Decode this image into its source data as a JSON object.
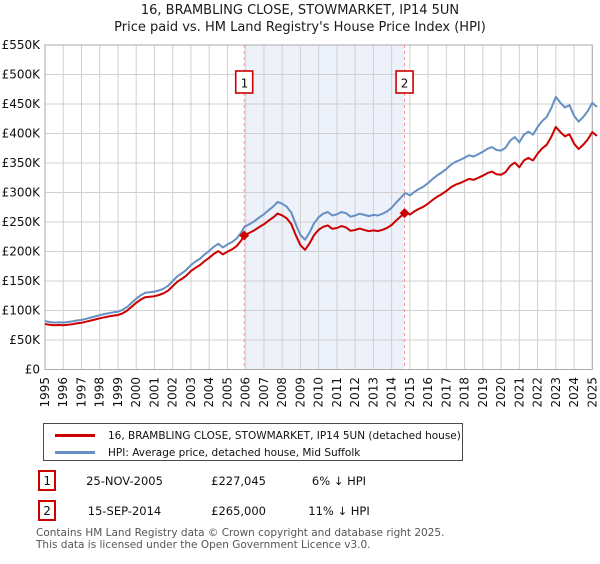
{
  "colors": {
    "accent_red": "#cc0000",
    "hpi_blue": "#6690c4",
    "shade": "#edf1fa",
    "dashed": "#f09898",
    "grid": "#d0d0d0",
    "plot_border": "#aaaaaa",
    "axis_text": "#111111",
    "footer_text": "#555555"
  },
  "chart_data": {
    "type": "line",
    "title": "16, BRAMBLING CLOSE, STOWMARKET, IP14 5UN",
    "subtitle": "Price paid vs. HM Land Registry's House Price Index (HPI)",
    "xlim": [
      1995,
      2025
    ],
    "ylim": [
      0,
      550
    ],
    "grid": true,
    "legend_position": "bottom",
    "x_ticks": [
      1995,
      1996,
      1997,
      1998,
      1999,
      2000,
      2001,
      2002,
      2003,
      2004,
      2005,
      2006,
      2007,
      2008,
      2009,
      2010,
      2011,
      2012,
      2013,
      2014,
      2015,
      2016,
      2017,
      2018,
      2019,
      2020,
      2021,
      2022,
      2023,
      2024,
      2025
    ],
    "y_tick_values": [
      0,
      50,
      100,
      150,
      200,
      250,
      300,
      350,
      400,
      450,
      500,
      550
    ],
    "y_tick_labels": [
      "£0",
      "£50K",
      "£100K",
      "£150K",
      "£200K",
      "£250K",
      "£300K",
      "£350K",
      "£400K",
      "£450K",
      "£500K",
      "£550K"
    ],
    "y_unit": "£K",
    "shaded_region": [
      2005.92,
      2014.71
    ],
    "x": [
      1995,
      1995.25,
      1995.5,
      1995.75,
      1996,
      1996.25,
      1996.5,
      1996.75,
      1997,
      1997.25,
      1997.5,
      1997.75,
      1998,
      1998.25,
      1998.5,
      1998.75,
      1999,
      1999.25,
      1999.5,
      1999.75,
      2000,
      2000.25,
      2000.5,
      2000.75,
      2001,
      2001.25,
      2001.5,
      2001.75,
      2002,
      2002.25,
      2002.5,
      2002.75,
      2003,
      2003.25,
      2003.5,
      2003.75,
      2004,
      2004.25,
      2004.5,
      2004.75,
      2005,
      2005.25,
      2005.5,
      2005.75,
      2005.92,
      2006,
      2006.25,
      2006.5,
      2006.75,
      2007,
      2007.25,
      2007.5,
      2007.75,
      2008,
      2008.25,
      2008.5,
      2008.75,
      2009,
      2009.25,
      2009.5,
      2009.75,
      2010,
      2010.25,
      2010.5,
      2010.75,
      2011,
      2011.25,
      2011.5,
      2011.75,
      2012,
      2012.25,
      2012.5,
      2012.75,
      2013,
      2013.25,
      2013.5,
      2013.75,
      2014,
      2014.25,
      2014.5,
      2014.71,
      2014.75,
      2015,
      2015.25,
      2015.5,
      2015.75,
      2016,
      2016.25,
      2016.5,
      2016.75,
      2017,
      2017.25,
      2017.5,
      2017.75,
      2018,
      2018.25,
      2018.5,
      2018.75,
      2019,
      2019.25,
      2019.5,
      2019.75,
      2020,
      2020.25,
      2020.5,
      2020.75,
      2021,
      2021.25,
      2021.5,
      2021.75,
      2022,
      2022.25,
      2022.5,
      2022.75,
      2023,
      2023.25,
      2023.5,
      2023.75,
      2024,
      2024.25,
      2024.5,
      2024.75,
      2025,
      2025.25
    ],
    "series": [
      {
        "id": "property-price-line",
        "name": "16, BRAMBLING CLOSE, STOWMARKET, IP14 5UN (detached house)",
        "color": "#cc0000",
        "values": [
          77.2,
          75.8,
          74.9,
          75.4,
          74.9,
          75.8,
          76.8,
          78.2,
          79.1,
          81.0,
          82.9,
          84.8,
          86.7,
          88.5,
          90.0,
          91.4,
          92.3,
          95.1,
          99.9,
          106.4,
          113.0,
          118.7,
          122.5,
          123.4,
          124.3,
          126.2,
          129.1,
          133.8,
          141.3,
          148.8,
          153.5,
          159.2,
          166.7,
          172.4,
          177.1,
          183.7,
          189.3,
          195.9,
          200.6,
          195.0,
          199.7,
          203.5,
          209.1,
          218.5,
          227.0,
          228.8,
          232.2,
          236.5,
          241.7,
          246.1,
          252.2,
          257.4,
          264.4,
          261.2,
          256.2,
          246.5,
          227.6,
          210.6,
          202.9,
          213.6,
          228.0,
          236.8,
          241.9,
          244.3,
          238.4,
          239.8,
          243.1,
          240.9,
          235.0,
          236.4,
          238.8,
          236.6,
          234.4,
          235.8,
          234.5,
          236.8,
          240.0,
          245.0,
          252.6,
          259.3,
          265.0,
          266.1,
          262.6,
          267.9,
          272.3,
          275.9,
          281.2,
          287.5,
          292.8,
          297.3,
          302.6,
          308.8,
          313.3,
          316.0,
          319.5,
          323.1,
          321.3,
          324.9,
          328.4,
          332.9,
          335.5,
          331.1,
          330.2,
          334.6,
          345.3,
          350.7,
          342.7,
          354.2,
          358.7,
          354.2,
          365.8,
          374.7,
          380.9,
          394.3,
          411.2,
          402.3,
          395.2,
          398.7,
          382.7,
          373.8,
          380.9,
          389.8,
          402.3,
          396.1
        ]
      },
      {
        "id": "hpi-line",
        "name": "HPI: Average price, detached house, Mid Suffolk",
        "color": "#6690c4",
        "values": [
          82,
          80.5,
          79.5,
          80,
          79.5,
          80.5,
          81.5,
          83,
          84,
          86,
          88,
          90,
          92,
          94,
          95.5,
          97,
          98,
          101,
          106,
          113,
          120,
          126,
          130,
          131,
          132,
          134,
          137,
          142,
          150,
          158,
          163,
          169,
          177,
          183,
          188,
          195,
          201,
          208,
          213,
          207,
          212,
          216,
          222,
          232,
          241,
          243,
          247,
          252,
          258,
          263,
          270,
          276,
          284,
          281,
          276,
          266,
          246,
          228,
          220,
          232,
          248,
          258,
          264,
          267,
          261,
          263,
          267,
          265,
          259,
          261,
          264,
          262,
          260,
          262,
          261,
          264,
          268,
          274,
          283,
          291,
          298,
          299,
          295,
          301,
          306,
          310,
          316,
          323,
          329,
          334,
          340,
          347,
          352,
          355,
          359,
          363,
          361,
          365,
          369,
          374,
          377,
          372,
          371,
          376,
          388,
          394,
          385,
          398,
          403,
          398,
          411,
          421,
          428,
          443,
          462,
          452,
          444,
          448,
          430,
          420,
          428,
          438,
          452,
          445
        ]
      }
    ],
    "sale_markers": [
      {
        "label": "1",
        "x": 2005.92,
        "value": 227.045
      },
      {
        "label": "2",
        "x": 2014.71,
        "value": 265.0
      }
    ]
  },
  "transactions": [
    {
      "num": "1",
      "date": "25-NOV-2005",
      "price": "£227,045",
      "vs_hpi": "6% ↓ HPI"
    },
    {
      "num": "2",
      "date": "15-SEP-2014",
      "price": "£265,000",
      "vs_hpi": "11% ↓ HPI"
    }
  ],
  "footer": {
    "line1": "Contains HM Land Registry data © Crown copyright and database right 2025.",
    "line2": "This data is licensed under the Open Government Licence v3.0."
  }
}
